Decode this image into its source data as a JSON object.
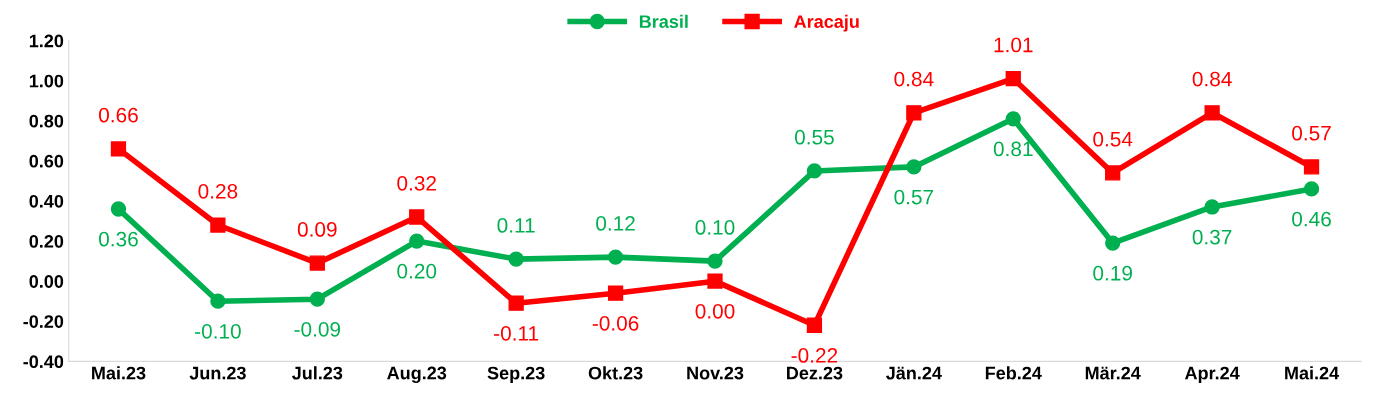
{
  "chart_data": {
    "type": "line",
    "categories": [
      "Mai.23",
      "Jun.23",
      "Jul.23",
      "Aug.23",
      "Sep.23",
      "Okt.23",
      "Nov.23",
      "Dez.23",
      "Jän.24",
      "Feb.24",
      "Mär.24",
      "Apr.24",
      "Mai.24"
    ],
    "series": [
      {
        "name": "Brasil",
        "color": "#00b050",
        "marker": "circle",
        "values": [
          0.36,
          -0.1,
          -0.09,
          0.2,
          0.11,
          0.12,
          0.1,
          0.55,
          0.57,
          0.81,
          0.19,
          0.37,
          0.46
        ],
        "value_labels": [
          "0.36",
          "-0.10",
          "-0.09",
          "0.20",
          "0.11",
          "0.12",
          "0.10",
          "0.55",
          "0.57",
          "0.81",
          "0.19",
          "0.37",
          "0.46"
        ]
      },
      {
        "name": "Aracaju",
        "color": "#ff0000",
        "marker": "square",
        "values": [
          0.66,
          0.28,
          0.09,
          0.32,
          -0.11,
          -0.06,
          0.0,
          -0.22,
          0.84,
          1.01,
          0.54,
          0.84,
          0.57
        ],
        "value_labels": [
          "0.66",
          "0.28",
          "0.09",
          "0.32",
          "-0.11",
          "-0.06",
          "0.00",
          "-0.22",
          "0.84",
          "1.01",
          "0.54",
          "0.84",
          "0.57"
        ]
      }
    ],
    "ylim": [
      -0.4,
      1.2
    ],
    "yticks": [
      {
        "value": -0.4,
        "label": "-0.40"
      },
      {
        "value": -0.2,
        "label": "-0.20"
      },
      {
        "value": 0,
        "label": "0.00"
      },
      {
        "value": 0.2,
        "label": "0.20"
      },
      {
        "value": 0.4,
        "label": "0.40"
      },
      {
        "value": 0.6,
        "label": "0.60"
      },
      {
        "value": 0.8,
        "label": "0.80"
      },
      {
        "value": 1.0,
        "label": "1.00"
      },
      {
        "value": 1.2,
        "label": "1.20"
      }
    ],
    "grid": false,
    "legend": "top",
    "line_style": "solid"
  }
}
